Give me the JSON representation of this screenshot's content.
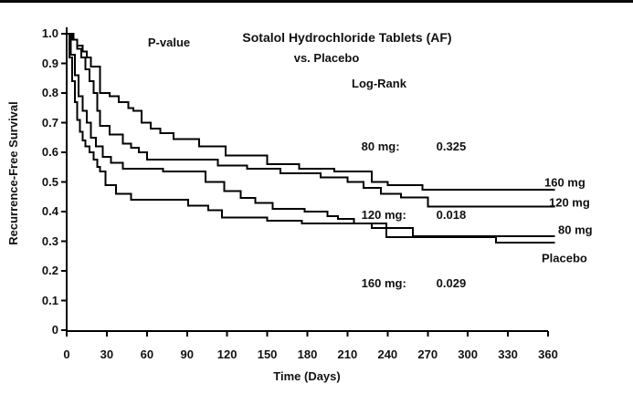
{
  "figure": {
    "pvalue_heading": "P-value",
    "title_line1": "Sotalol Hydrochloride Tablets (AF)",
    "title_line2": "vs. Placebo",
    "stats_heading": "Log-Rank",
    "stats": [
      {
        "label": "80 mg:",
        "value": "0.325"
      },
      {
        "label": "120 mg:",
        "value": "0.018"
      },
      {
        "label": "160 mg:",
        "value": "0.029"
      }
    ]
  },
  "chart_data": {
    "type": "line",
    "subtype": "kaplan_meier_step",
    "title": "Sotalol Hydrochloride Tablets (AF) vs. Placebo",
    "xlabel": "Time (Days)",
    "ylabel": "Recurrence-Free Survival",
    "xlim": [
      0,
      360
    ],
    "ylim": [
      0,
      1.0
    ],
    "grid": false,
    "line_color": "#000000",
    "background_color": "#ffffff",
    "legend_position": "right-of-curve-ends",
    "x_ticks": [
      0,
      30,
      60,
      90,
      120,
      150,
      180,
      210,
      240,
      270,
      300,
      330,
      360
    ],
    "y_ticks": [
      {
        "value": 1.0,
        "label": "1.0"
      },
      {
        "value": 0.9,
        "label": "0.9"
      },
      {
        "value": 0.8,
        "label": "0.8"
      },
      {
        "value": 0.7,
        "label": "0.7"
      },
      {
        "value": 0.6,
        "label": "0.6"
      },
      {
        "value": 0.5,
        "label": "0.5"
      },
      {
        "value": 0.4,
        "label": "0.4"
      },
      {
        "value": 0.3,
        "label": "0.3"
      },
      {
        "value": 0.2,
        "label": "0.2"
      },
      {
        "value": 0.1,
        "label": "0.1"
      },
      {
        "value": 0.0,
        "label": "0"
      }
    ],
    "series": [
      {
        "name": "160 mg",
        "points": [
          [
            0,
            1.0
          ],
          [
            4,
            0.98
          ],
          [
            8,
            0.96
          ],
          [
            12,
            0.94
          ],
          [
            15,
            0.92
          ],
          [
            18,
            0.89
          ],
          [
            25,
            0.8
          ],
          [
            32,
            0.79
          ],
          [
            39,
            0.77
          ],
          [
            46,
            0.75
          ],
          [
            50,
            0.74
          ],
          [
            56,
            0.7
          ],
          [
            63,
            0.68
          ],
          [
            70,
            0.665
          ],
          [
            80,
            0.645
          ],
          [
            99,
            0.62
          ],
          [
            119,
            0.59
          ],
          [
            150,
            0.56
          ],
          [
            174,
            0.545
          ],
          [
            200,
            0.535
          ],
          [
            228,
            0.5
          ],
          [
            240,
            0.49
          ],
          [
            266,
            0.474
          ],
          [
            365,
            0.474
          ]
        ]
      },
      {
        "name": "120 mg",
        "points": [
          [
            0,
            1.0
          ],
          [
            5,
            0.98
          ],
          [
            8,
            0.95
          ],
          [
            11,
            0.92
          ],
          [
            14,
            0.88
          ],
          [
            17,
            0.84
          ],
          [
            20,
            0.8
          ],
          [
            23,
            0.74
          ],
          [
            25,
            0.69
          ],
          [
            32,
            0.66
          ],
          [
            42,
            0.63
          ],
          [
            48,
            0.615
          ],
          [
            54,
            0.6
          ],
          [
            60,
            0.575
          ],
          [
            113,
            0.555
          ],
          [
            135,
            0.545
          ],
          [
            160,
            0.53
          ],
          [
            190,
            0.515
          ],
          [
            210,
            0.5
          ],
          [
            222,
            0.48
          ],
          [
            235,
            0.46
          ],
          [
            250,
            0.447
          ],
          [
            270,
            0.417
          ],
          [
            365,
            0.417
          ]
        ]
      },
      {
        "name": "80 mg",
        "points": [
          [
            0,
            1.0
          ],
          [
            3,
            0.93
          ],
          [
            6,
            0.86
          ],
          [
            9,
            0.79
          ],
          [
            12,
            0.74
          ],
          [
            15,
            0.7
          ],
          [
            18,
            0.65
          ],
          [
            22,
            0.62
          ],
          [
            27,
            0.585
          ],
          [
            33,
            0.565
          ],
          [
            42,
            0.545
          ],
          [
            72,
            0.535
          ],
          [
            104,
            0.5
          ],
          [
            118,
            0.47
          ],
          [
            130,
            0.446
          ],
          [
            141,
            0.43
          ],
          [
            154,
            0.41
          ],
          [
            178,
            0.4
          ],
          [
            195,
            0.385
          ],
          [
            203,
            0.375
          ],
          [
            215,
            0.36
          ],
          [
            228,
            0.345
          ],
          [
            259,
            0.317
          ],
          [
            365,
            0.317
          ]
        ]
      },
      {
        "name": "Placebo",
        "points": [
          [
            0,
            1.0
          ],
          [
            2,
            0.92
          ],
          [
            4,
            0.84
          ],
          [
            6,
            0.77
          ],
          [
            8,
            0.71
          ],
          [
            10,
            0.67
          ],
          [
            12,
            0.64
          ],
          [
            14,
            0.62
          ],
          [
            17,
            0.6
          ],
          [
            20,
            0.575
          ],
          [
            23,
            0.55
          ],
          [
            25,
            0.535
          ],
          [
            29,
            0.49
          ],
          [
            37,
            0.46
          ],
          [
            48,
            0.44
          ],
          [
            91,
            0.42
          ],
          [
            106,
            0.405
          ],
          [
            116,
            0.38
          ],
          [
            150,
            0.37
          ],
          [
            176,
            0.36
          ],
          [
            239,
            0.314
          ],
          [
            321,
            0.296
          ],
          [
            365,
            0.296
          ]
        ]
      }
    ]
  }
}
